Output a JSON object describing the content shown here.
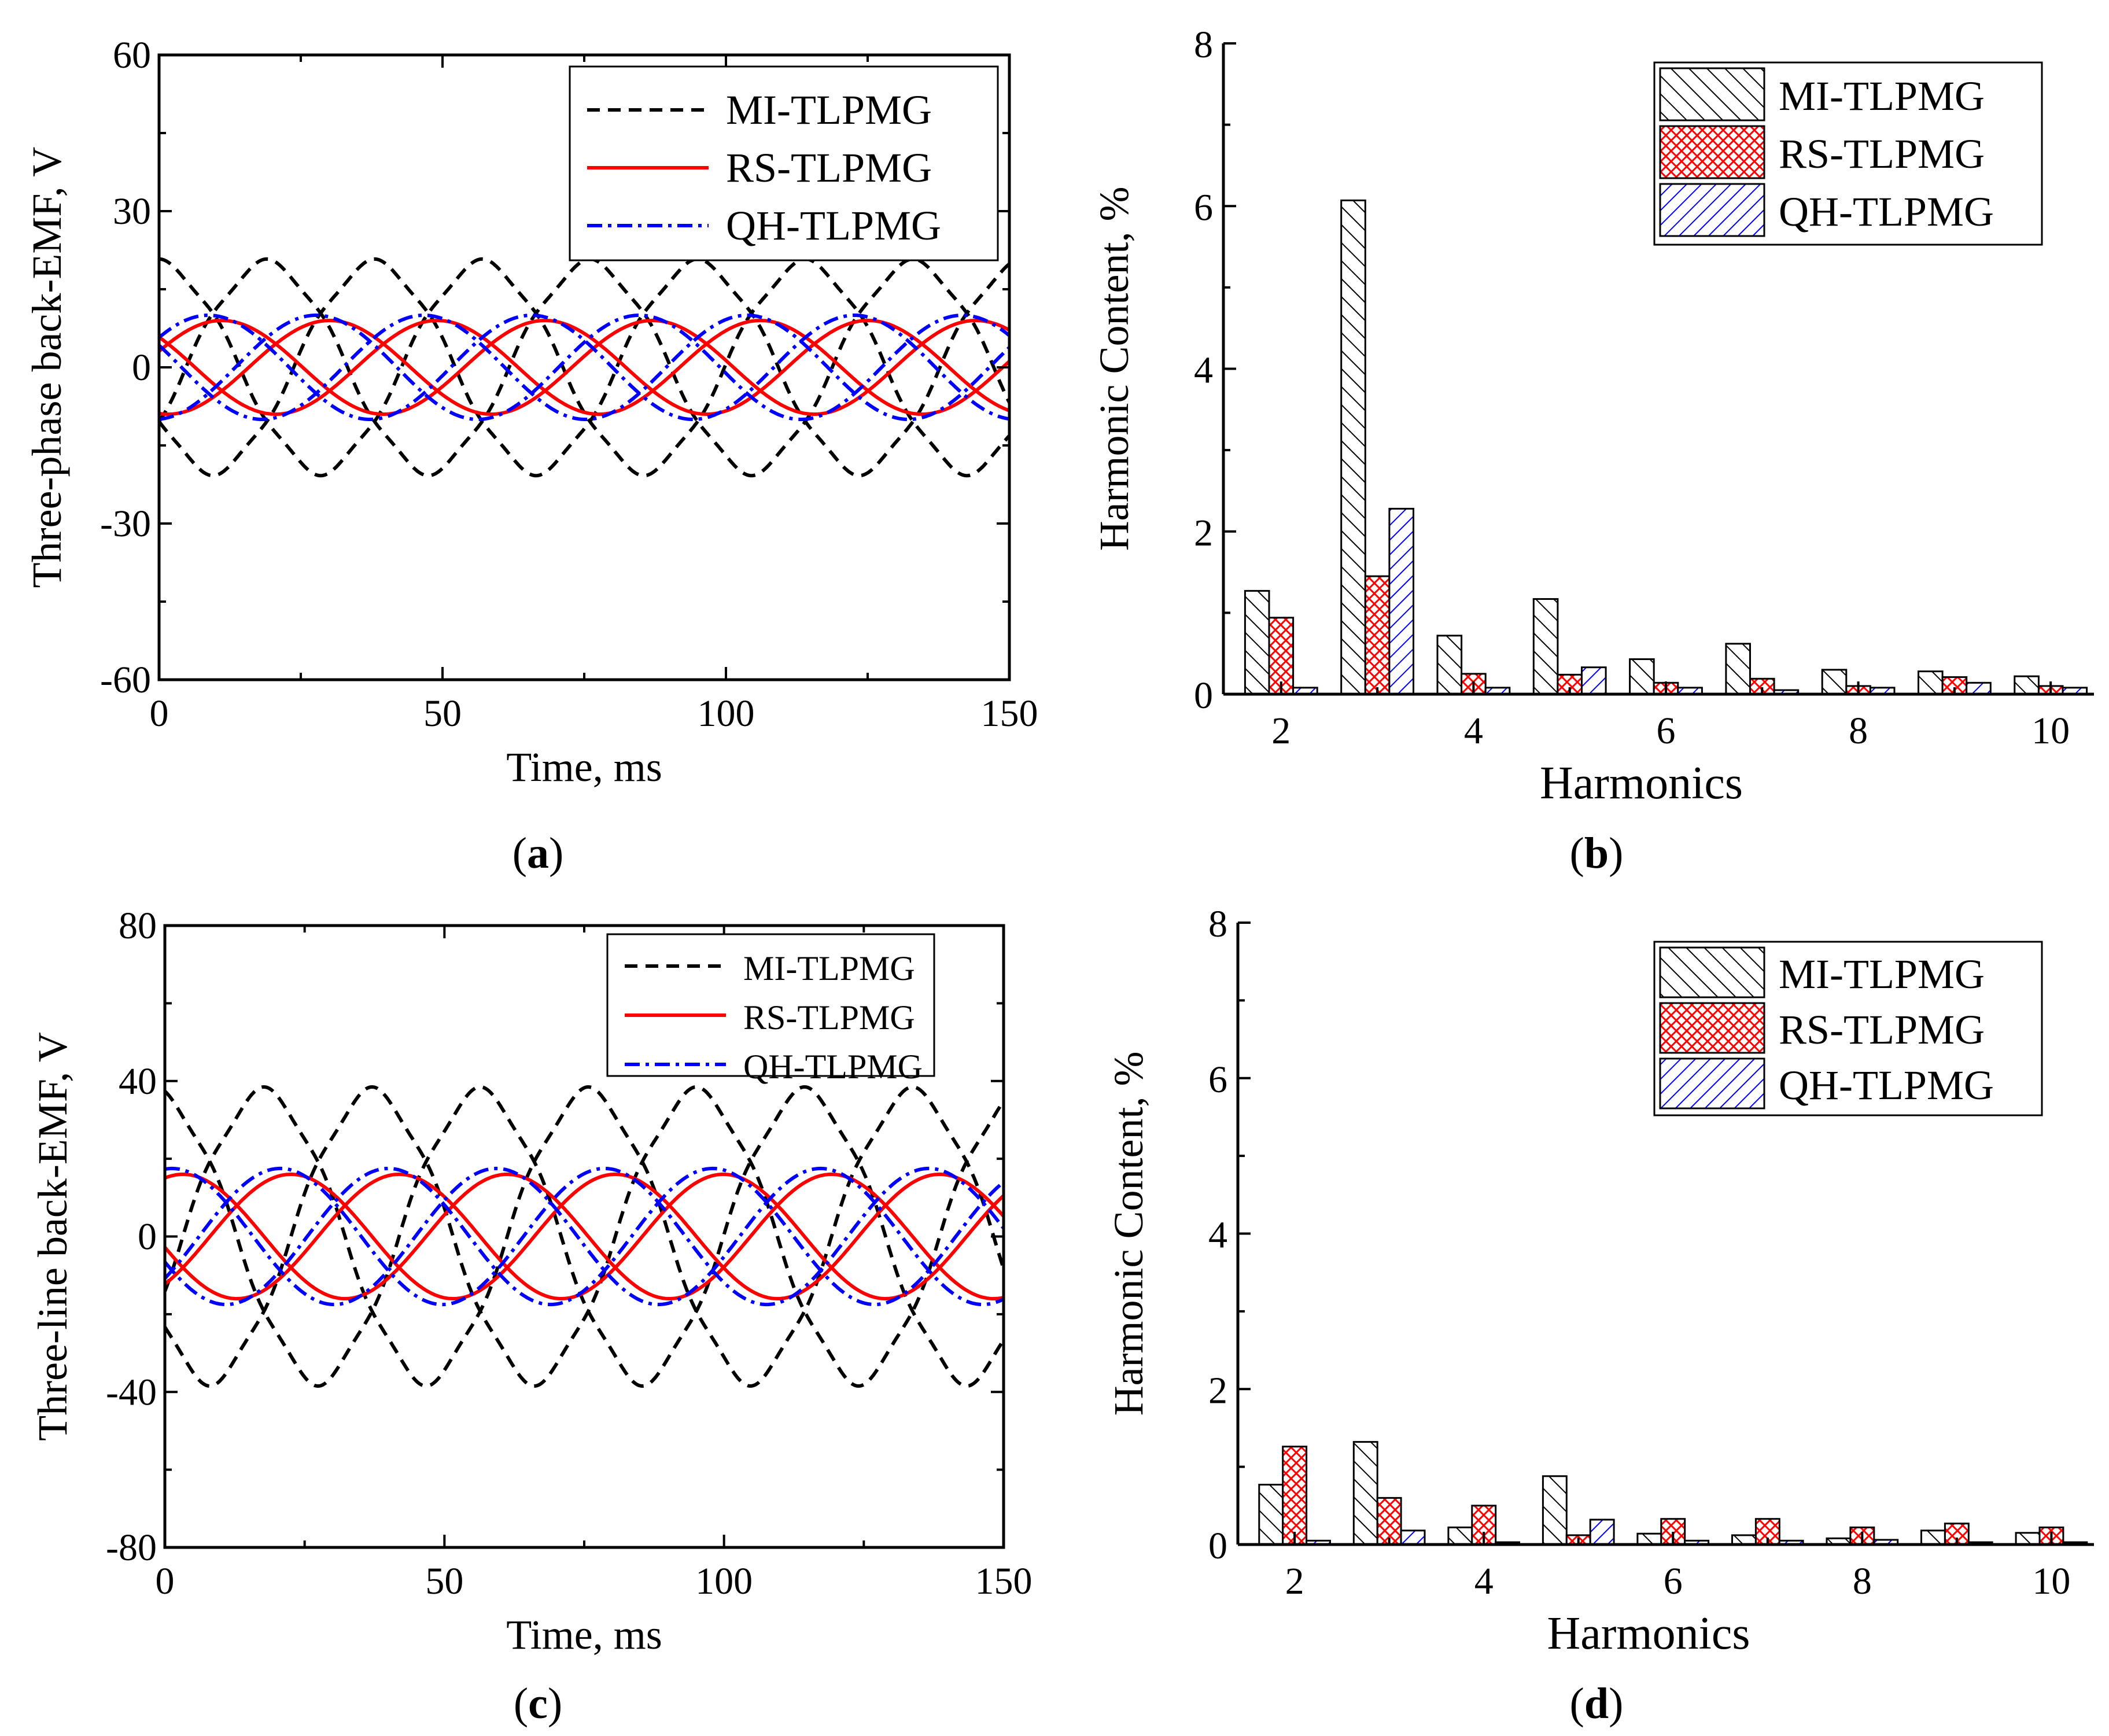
{
  "colors": {
    "mi": "#000000",
    "rs": "#ff0000",
    "qh": "#0000ff"
  },
  "series_names": [
    "MI-TLPMG",
    "RS-TLPMG",
    "QH-TLPMG"
  ],
  "chart_data": [
    {
      "panel": "a",
      "type": "line",
      "xlabel": "Time, ms",
      "ylabel": "Three-phase back-EMF, V",
      "xlim": [
        0,
        150
      ],
      "ylim": [
        -60,
        60
      ],
      "xticks": [
        "0",
        "50",
        "100",
        "150"
      ],
      "yticks": [
        "-60",
        "-30",
        "0",
        "30",
        "60"
      ],
      "legend_position": "top-right",
      "series": [
        {
          "name": "MI-TLPMG",
          "style": "dashed",
          "color": "#000000",
          "amplitude": 20,
          "period_ms": 57,
          "phases_deg": [
            90,
            -30,
            210
          ]
        },
        {
          "name": "RS-TLPMG",
          "style": "solid",
          "color": "#ff0000",
          "amplitude": 9,
          "period_ms": 57,
          "phases_deg": [
            20,
            -100,
            140
          ]
        },
        {
          "name": "QH-TLPMG",
          "style": "dashdot",
          "color": "#0000ff",
          "amplitude": 10,
          "period_ms": 57,
          "phases_deg": [
            35,
            -85,
            155
          ]
        }
      ]
    },
    {
      "panel": "b",
      "type": "bar",
      "xlabel": "Harmonics",
      "ylabel": "Harmonic Content, %",
      "ylim": [
        0,
        8
      ],
      "yticks": [
        "0",
        "2",
        "4",
        "6",
        "8"
      ],
      "xticks": [
        "2",
        "4",
        "6",
        "8",
        "10"
      ],
      "categories": [
        2,
        3,
        4,
        5,
        6,
        7,
        8,
        9,
        10
      ],
      "legend_position": "top-right",
      "series": [
        {
          "name": "MI-TLPMG",
          "values": [
            1.27,
            6.07,
            0.72,
            1.17,
            0.43,
            0.62,
            0.3,
            0.28,
            0.22
          ]
        },
        {
          "name": "RS-TLPMG",
          "values": [
            0.94,
            1.45,
            0.25,
            0.24,
            0.14,
            0.19,
            0.1,
            0.21,
            0.1
          ]
        },
        {
          "name": "QH-TLPMG",
          "values": [
            0.08,
            2.28,
            0.08,
            0.33,
            0.08,
            0.05,
            0.08,
            0.14,
            0.08
          ]
        }
      ]
    },
    {
      "panel": "c",
      "type": "line",
      "xlabel": "Time, ms",
      "ylabel": "Three-line back-EMF, V",
      "xlim": [
        0,
        150
      ],
      "ylim": [
        -80,
        80
      ],
      "xticks": [
        "0",
        "50",
        "100",
        "150"
      ],
      "yticks": [
        "-80",
        "-40",
        "0",
        "40",
        "80"
      ],
      "legend_position": "top-right",
      "series": [
        {
          "name": "MI-TLPMG",
          "style": "dashed",
          "color": "#000000",
          "amplitude": 37,
          "period_ms": 58,
          "phases_deg": [
            100,
            -20,
            220
          ]
        },
        {
          "name": "RS-TLPMG",
          "style": "solid",
          "color": "#ff0000",
          "amplitude": 16,
          "period_ms": 58,
          "phases_deg": [
            70,
            -50,
            190
          ]
        },
        {
          "name": "QH-TLPMG",
          "style": "dashdot",
          "color": "#0000ff",
          "amplitude": 17.5,
          "period_ms": 58,
          "phases_deg": [
            82,
            -38,
            202
          ]
        }
      ]
    },
    {
      "panel": "d",
      "type": "bar",
      "xlabel": "Harmonics",
      "ylabel": "Harmonic Content, %",
      "ylim": [
        0,
        8
      ],
      "yticks": [
        "0",
        "2",
        "4",
        "6",
        "8"
      ],
      "xticks": [
        "2",
        "4",
        "6",
        "8",
        "10"
      ],
      "categories": [
        2,
        3,
        4,
        5,
        6,
        7,
        8,
        9,
        10
      ],
      "legend_position": "top-right",
      "series": [
        {
          "name": "MI-TLPMG",
          "values": [
            0.77,
            1.32,
            0.22,
            0.88,
            0.14,
            0.12,
            0.08,
            0.18,
            0.15
          ]
        },
        {
          "name": "RS-TLPMG",
          "values": [
            1.26,
            0.6,
            0.5,
            0.12,
            0.33,
            0.33,
            0.22,
            0.27,
            0.22
          ]
        },
        {
          "name": "QH-TLPMG",
          "values": [
            0.05,
            0.18,
            0.03,
            0.32,
            0.05,
            0.05,
            0.06,
            0.03,
            0.03
          ]
        }
      ]
    }
  ],
  "panel_labels": [
    "a",
    "b",
    "c",
    "d"
  ]
}
